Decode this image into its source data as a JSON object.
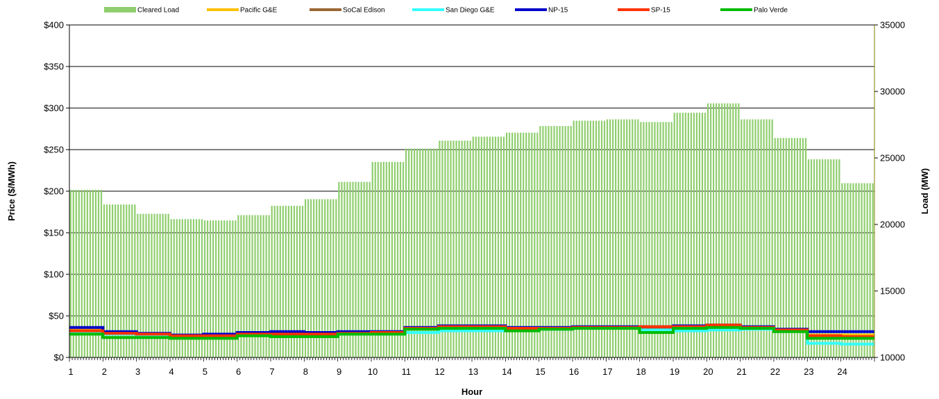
{
  "chart_data": {
    "type": "bar",
    "xlabel": "Hour",
    "ylabel_left": "Price ($/MWh)",
    "ylabel_right": "Load (MW)",
    "ylim_left": [
      0,
      400
    ],
    "ylim_right": [
      10000,
      35000
    ],
    "y_ticks_left": [
      0,
      50,
      100,
      150,
      200,
      250,
      300,
      350,
      400
    ],
    "y_tick_labels_left": [
      "$0",
      "$50",
      "$100",
      "$150",
      "$200",
      "$250",
      "$300",
      "$350",
      "$400"
    ],
    "y_ticks_right": [
      10000,
      15000,
      20000,
      25000,
      30000,
      35000
    ],
    "y_tick_labels_right": [
      "10000",
      "15000",
      "20000",
      "25000",
      "30000",
      "35000"
    ],
    "hours": [
      "1",
      "2",
      "3",
      "4",
      "5",
      "6",
      "7",
      "8",
      "9",
      "10",
      "11",
      "12",
      "13",
      "14",
      "15",
      "16",
      "17",
      "18",
      "19",
      "20",
      "21",
      "22",
      "23",
      "24"
    ],
    "grid": true,
    "legend_position": "top",
    "load_series": {
      "name": "Cleared Load",
      "color": "#8fce6e",
      "values": [
        22600,
        21500,
        20800,
        20400,
        20300,
        20700,
        21400,
        21900,
        23200,
        24700,
        25700,
        26300,
        26600,
        26900,
        27400,
        27800,
        27900,
        27700,
        28400,
        29100,
        27900,
        26500,
        24900,
        23100
      ]
    },
    "price_series": [
      {
        "name": "Pacific G&E",
        "color": "#ffc000",
        "values": [
          33,
          29,
          28,
          26,
          27,
          28,
          29,
          29,
          30,
          30,
          34,
          36,
          36,
          35,
          35,
          36,
          36,
          35,
          37,
          38,
          35,
          33,
          27,
          27
        ]
      },
      {
        "name": "SoCal Edison",
        "color": "#996633",
        "values": [
          32,
          29,
          28,
          26,
          26,
          28,
          28,
          28,
          29,
          30,
          35,
          37,
          37,
          34,
          35,
          36,
          36,
          36,
          37,
          38,
          35,
          33,
          25,
          25
        ]
      },
      {
        "name": "San Diego G&E",
        "color": "#33ffff",
        "values": [
          31,
          28,
          27,
          25,
          25,
          27,
          27,
          27,
          28,
          28,
          30,
          32,
          32,
          33,
          34,
          35,
          35,
          33,
          32,
          33,
          34,
          32,
          17,
          16
        ]
      },
      {
        "name": "NP-15",
        "color": "#0000cc",
        "values": [
          36,
          31,
          29,
          27,
          28,
          30,
          31,
          30,
          31,
          31,
          36,
          38,
          38,
          36,
          36,
          37,
          37,
          37,
          38,
          39,
          37,
          34,
          31,
          31
        ]
      },
      {
        "name": "SP-15",
        "color": "#ff3300",
        "values": [
          32,
          29,
          28,
          26,
          26,
          28,
          28,
          28,
          29,
          30,
          35,
          37,
          37,
          35,
          35,
          36,
          36,
          37,
          37,
          39,
          36,
          33,
          26,
          25
        ]
      },
      {
        "name": "Palo Verde",
        "color": "#00bb00",
        "values": [
          28,
          24,
          24,
          23,
          23,
          26,
          25,
          25,
          28,
          28,
          34,
          35,
          35,
          32,
          34,
          35,
          35,
          30,
          35,
          36,
          35,
          31,
          23,
          23
        ]
      }
    ]
  }
}
